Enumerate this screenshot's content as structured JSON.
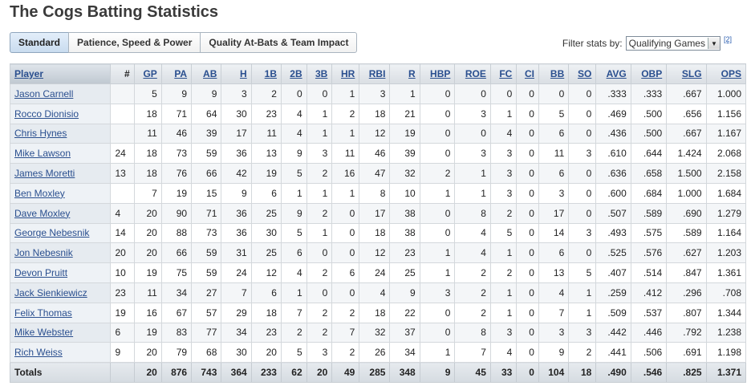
{
  "page": {
    "title": "The Cogs Batting Statistics"
  },
  "tabs": [
    {
      "label": "Standard",
      "active": true
    },
    {
      "label": "Patience, Speed & Power",
      "active": false
    },
    {
      "label": "Quality At-Bats & Team Impact",
      "active": false
    }
  ],
  "filter": {
    "label": "Filter stats by:",
    "selected": "Qualifying Games",
    "footnote": "[2]"
  },
  "table": {
    "headers": [
      "Player",
      "#",
      "GP",
      "PA",
      "AB",
      "H",
      "1B",
      "2B",
      "3B",
      "HR",
      "RBI",
      "R",
      "HBP",
      "ROE",
      "FC",
      "CI",
      "BB",
      "SO",
      "AVG",
      "OBP",
      "SLG",
      "OPS"
    ],
    "rows": [
      [
        "Jason Carnell",
        "",
        "5",
        "9",
        "9",
        "3",
        "2",
        "0",
        "0",
        "1",
        "3",
        "1",
        "0",
        "0",
        "0",
        "0",
        "0",
        "0",
        ".333",
        ".333",
        ".667",
        "1.000"
      ],
      [
        "Rocco Dionisio",
        "",
        "18",
        "71",
        "64",
        "30",
        "23",
        "4",
        "1",
        "2",
        "18",
        "21",
        "0",
        "3",
        "1",
        "0",
        "5",
        "0",
        ".469",
        ".500",
        ".656",
        "1.156"
      ],
      [
        "Chris Hynes",
        "",
        "11",
        "46",
        "39",
        "17",
        "11",
        "4",
        "1",
        "1",
        "12",
        "19",
        "0",
        "0",
        "4",
        "0",
        "6",
        "0",
        ".436",
        ".500",
        ".667",
        "1.167"
      ],
      [
        "Mike Lawson",
        "24",
        "18",
        "73",
        "59",
        "36",
        "13",
        "9",
        "3",
        "11",
        "46",
        "39",
        "0",
        "3",
        "3",
        "0",
        "11",
        "3",
        ".610",
        ".644",
        "1.424",
        "2.068"
      ],
      [
        "James Moretti",
        "13",
        "18",
        "76",
        "66",
        "42",
        "19",
        "5",
        "2",
        "16",
        "47",
        "32",
        "2",
        "1",
        "3",
        "0",
        "6",
        "0",
        ".636",
        ".658",
        "1.500",
        "2.158"
      ],
      [
        "Ben Moxley",
        "",
        "7",
        "19",
        "15",
        "9",
        "6",
        "1",
        "1",
        "1",
        "8",
        "10",
        "1",
        "1",
        "3",
        "0",
        "3",
        "0",
        ".600",
        ".684",
        "1.000",
        "1.684"
      ],
      [
        "Dave Moxley",
        "4",
        "20",
        "90",
        "71",
        "36",
        "25",
        "9",
        "2",
        "0",
        "17",
        "38",
        "0",
        "8",
        "2",
        "0",
        "17",
        "0",
        ".507",
        ".589",
        ".690",
        "1.279"
      ],
      [
        "George Nebesnik",
        "14",
        "20",
        "88",
        "73",
        "36",
        "30",
        "5",
        "1",
        "0",
        "18",
        "38",
        "0",
        "4",
        "5",
        "0",
        "14",
        "3",
        ".493",
        ".575",
        ".589",
        "1.164"
      ],
      [
        "Jon Nebesnik",
        "20",
        "20",
        "66",
        "59",
        "31",
        "25",
        "6",
        "0",
        "0",
        "12",
        "23",
        "1",
        "4",
        "1",
        "0",
        "6",
        "0",
        ".525",
        ".576",
        ".627",
        "1.203"
      ],
      [
        "Devon Pruitt",
        "10",
        "19",
        "75",
        "59",
        "24",
        "12",
        "4",
        "2",
        "6",
        "24",
        "25",
        "1",
        "2",
        "2",
        "0",
        "13",
        "5",
        ".407",
        ".514",
        ".847",
        "1.361"
      ],
      [
        "Jack Sienkiewicz",
        "23",
        "11",
        "34",
        "27",
        "7",
        "6",
        "1",
        "0",
        "0",
        "4",
        "9",
        "3",
        "2",
        "1",
        "0",
        "4",
        "1",
        ".259",
        ".412",
        ".296",
        ".708"
      ],
      [
        "Felix Thomas",
        "19",
        "16",
        "67",
        "57",
        "29",
        "18",
        "7",
        "2",
        "2",
        "18",
        "22",
        "0",
        "2",
        "1",
        "0",
        "7",
        "1",
        ".509",
        ".537",
        ".807",
        "1.344"
      ],
      [
        "Mike Webster",
        "6",
        "19",
        "83",
        "77",
        "34",
        "23",
        "2",
        "2",
        "7",
        "32",
        "37",
        "0",
        "8",
        "3",
        "0",
        "3",
        "3",
        ".442",
        ".446",
        ".792",
        "1.238"
      ],
      [
        "Rich Weiss",
        "9",
        "20",
        "79",
        "68",
        "30",
        "20",
        "5",
        "3",
        "2",
        "26",
        "34",
        "1",
        "7",
        "4",
        "0",
        "9",
        "2",
        ".441",
        ".506",
        ".691",
        "1.198"
      ]
    ],
    "totals": [
      "Totals",
      "",
      "20",
      "876",
      "743",
      "364",
      "233",
      "62",
      "20",
      "49",
      "285",
      "348",
      "9",
      "45",
      "33",
      "0",
      "104",
      "18",
      ".490",
      ".546",
      ".825",
      "1.371"
    ]
  },
  "colors": {
    "link": "#2a4f8f",
    "header_bg": "#d9dee3",
    "active_tab": "#c9dcef"
  }
}
